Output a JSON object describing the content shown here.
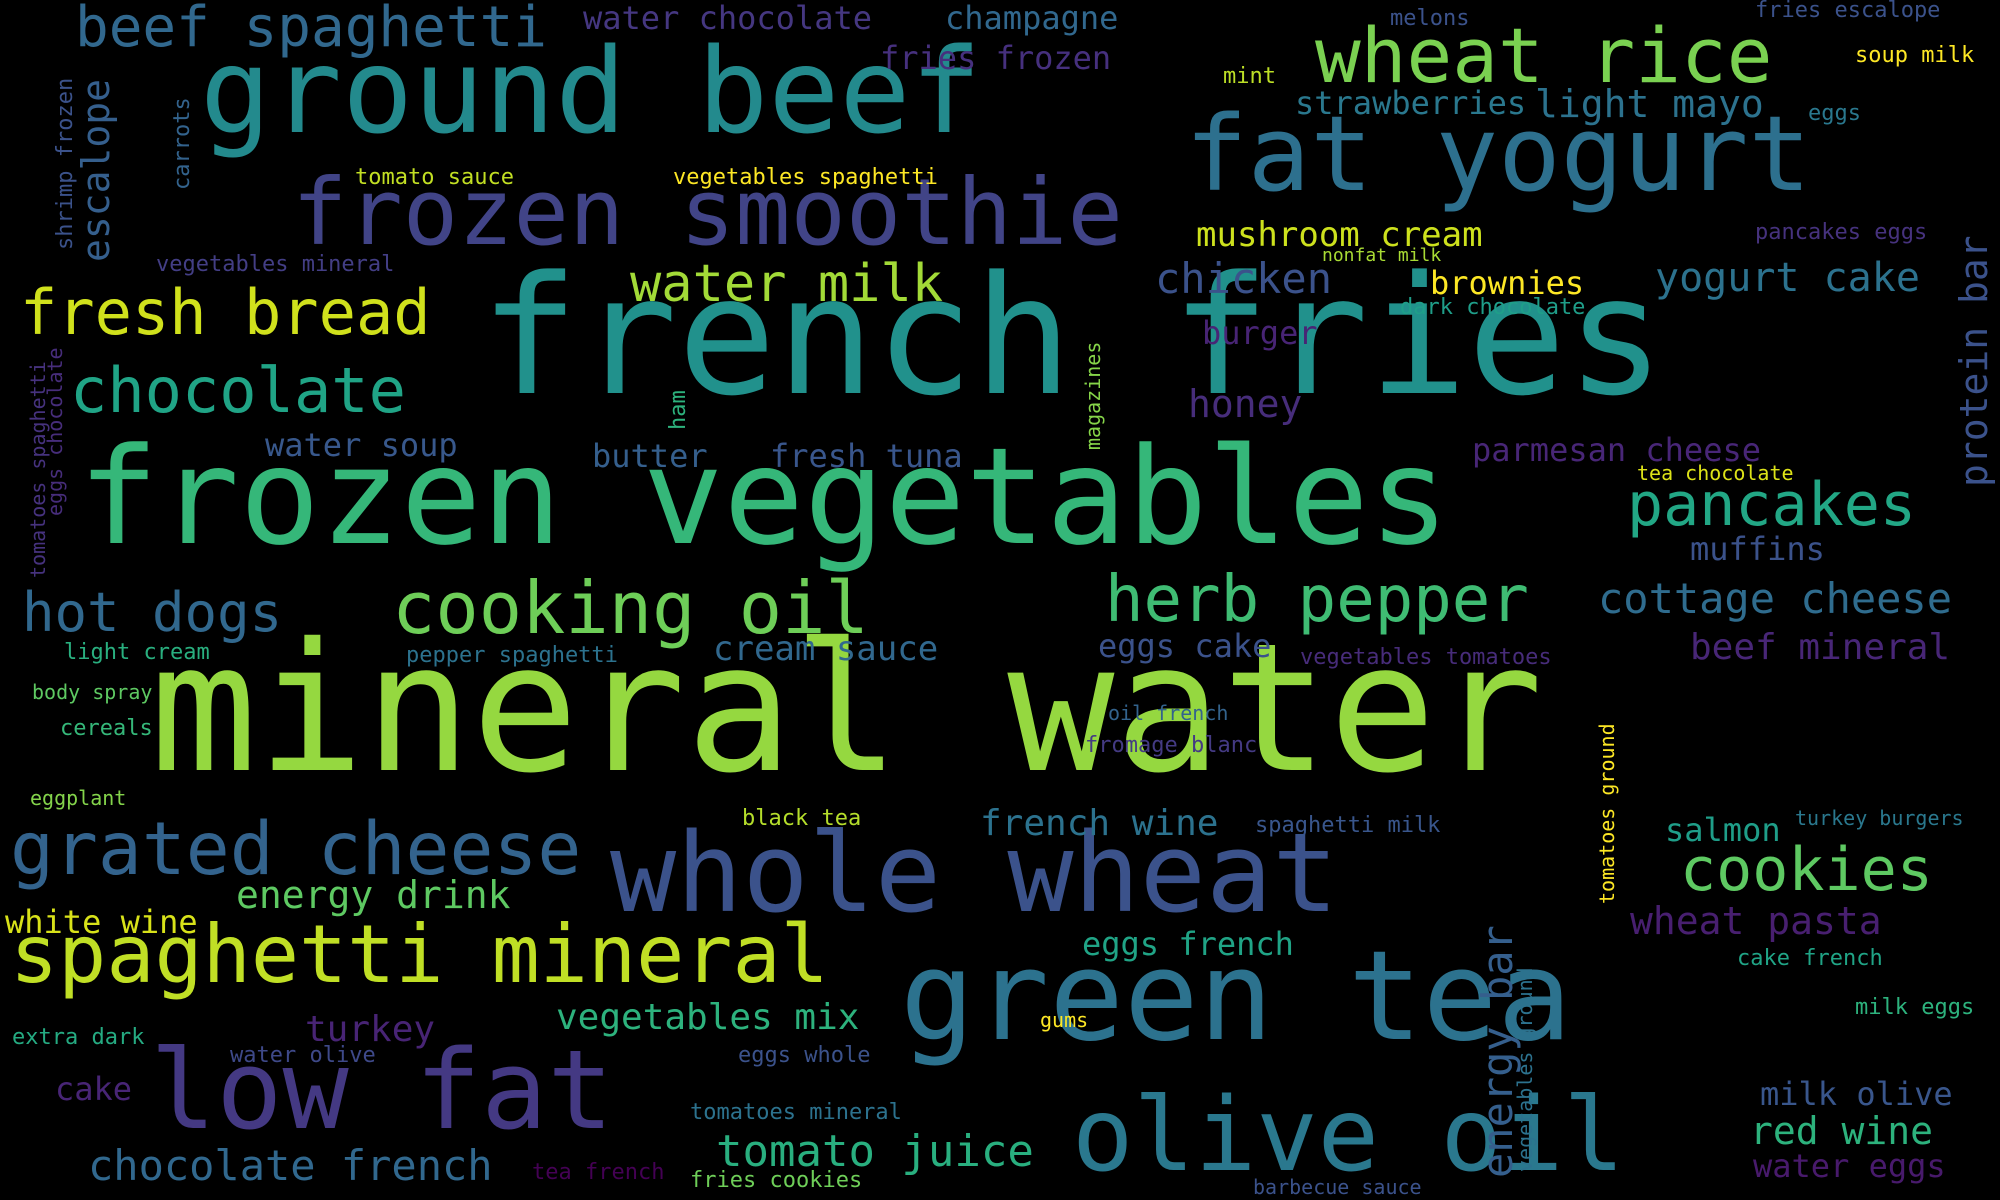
{
  "words": [
    {
      "text": "mineral water",
      "color": "#95d840"
    },
    {
      "text": "french fries",
      "color": "#21918c"
    },
    {
      "text": "frozen vegetables",
      "color": "#35b779"
    },
    {
      "text": "green tea",
      "color": "#2c728e"
    },
    {
      "text": "whole wheat",
      "color": "#3b528b"
    },
    {
      "text": "ground beef",
      "color": "#238a8d"
    },
    {
      "text": "fat yogurt",
      "color": "#2d708e"
    },
    {
      "text": "low fat",
      "color": "#443983"
    },
    {
      "text": "olive oil",
      "color": "#2a788e"
    },
    {
      "text": "frozen smoothie",
      "color": "#414487"
    },
    {
      "text": "spaghetti mineral",
      "color": "#c0df25"
    },
    {
      "text": "grated cheese",
      "color": "#33638d"
    },
    {
      "text": "wheat rice",
      "color": "#7ad151"
    },
    {
      "text": "cooking oil",
      "color": "#6ece58"
    },
    {
      "text": "herb pepper",
      "color": "#3fbc73"
    },
    {
      "text": "beef spaghetti",
      "color": "#31688e"
    },
    {
      "text": "fresh bread",
      "color": "#d0e11c"
    },
    {
      "text": "chocolate",
      "color": "#20a486"
    },
    {
      "text": "hot dogs",
      "color": "#31688e"
    },
    {
      "text": "cookies",
      "color": "#5ec962"
    },
    {
      "text": "pancakes",
      "color": "#22a785"
    },
    {
      "text": "water milk",
      "color": "#a2da37"
    },
    {
      "text": "chocolate french",
      "color": "#31688e"
    },
    {
      "text": "tomato juice",
      "color": "#29af7f"
    },
    {
      "text": "cottage cheese",
      "color": "#2f6c8e"
    },
    {
      "text": "energy bar",
      "color": "#355f8d"
    },
    {
      "text": "red wine",
      "color": "#2db27d"
    },
    {
      "text": "yogurt cake",
      "color": "#2c728e"
    },
    {
      "text": "mushroom cream",
      "color": "#cde11d"
    },
    {
      "text": "chicken",
      "color": "#3b528b"
    },
    {
      "text": "light mayo",
      "color": "#2c728e"
    },
    {
      "text": "strawberries",
      "color": "#2a788e"
    },
    {
      "text": "vegetables mix",
      "color": "#2db27d"
    },
    {
      "text": "energy drink",
      "color": "#5ec962"
    },
    {
      "text": "protein bar",
      "color": "#3b528b"
    },
    {
      "text": "escalope",
      "color": "#355f8d"
    },
    {
      "text": "parmesan cheese",
      "color": "#482677"
    },
    {
      "text": "wheat pasta",
      "color": "#481f70"
    },
    {
      "text": "honey",
      "color": "#472d7b"
    },
    {
      "text": "white wine",
      "color": "#d8e219"
    },
    {
      "text": "champagne",
      "color": "#31688e"
    },
    {
      "text": "water chocolate",
      "color": "#453781"
    },
    {
      "text": "fries frozen",
      "color": "#46307e"
    },
    {
      "text": "french wine",
      "color": "#2c728e"
    },
    {
      "text": "cream sauce",
      "color": "#31688e"
    },
    {
      "text": "eggs french",
      "color": "#20a486"
    },
    {
      "text": "butter",
      "color": "#355f8d"
    },
    {
      "text": "fresh tuna",
      "color": "#39568c"
    },
    {
      "text": "water soup",
      "color": "#38588c"
    },
    {
      "text": "eggs cake",
      "color": "#3b528b"
    },
    {
      "text": "beef mineral",
      "color": "#482677"
    },
    {
      "text": "muffins",
      "color": "#3b528b"
    },
    {
      "text": "milk olive",
      "color": "#39568c"
    },
    {
      "text": "salmon",
      "color": "#1f9e89"
    },
    {
      "text": "turkey",
      "color": "#482475"
    },
    {
      "text": "cake",
      "color": "#482576"
    },
    {
      "text": "brownies",
      "color": "#fde725"
    },
    {
      "text": "burger",
      "color": "#482475"
    },
    {
      "text": "water eggs",
      "color": "#481a6c"
    },
    {
      "text": "water olive",
      "color": "#3e4989"
    },
    {
      "text": "eggs whole",
      "color": "#3b528b"
    },
    {
      "text": "shrimp frozen",
      "color": "#3b528b"
    },
    {
      "text": "carrots",
      "color": "#33638d"
    },
    {
      "text": "tomato sauce",
      "color": "#c2df23"
    },
    {
      "text": "vegetables spaghetti",
      "color": "#fde725"
    },
    {
      "text": "vegetables mineral",
      "color": "#433e85"
    },
    {
      "text": "nonfat milk",
      "color": "#a8db34"
    },
    {
      "text": "dark chocolate",
      "color": "#1f9e89"
    },
    {
      "text": "tea chocolate",
      "color": "#dde318"
    },
    {
      "text": "fries escalope",
      "color": "#3b528b"
    },
    {
      "text": "soup milk",
      "color": "#fde725"
    },
    {
      "text": "melons",
      "color": "#3b528b"
    },
    {
      "text": "mint",
      "color": "#bddf26"
    },
    {
      "text": "eggs",
      "color": "#2a788e"
    },
    {
      "text": "pancakes eggs",
      "color": "#46327e"
    },
    {
      "text": "magazines",
      "color": "#86d549"
    },
    {
      "text": "ham",
      "color": "#2db27d"
    },
    {
      "text": "tomatoes spaghetti",
      "color": "#46327e"
    },
    {
      "text": "eggs chocolate",
      "color": "#472d7b"
    },
    {
      "text": "light cream",
      "color": "#29af7f"
    },
    {
      "text": "pepper spaghetti",
      "color": "#2c728e"
    },
    {
      "text": "vegetables tomatoes",
      "color": "#472c7a"
    },
    {
      "text": "body spray",
      "color": "#5ec962"
    },
    {
      "text": "cereals",
      "color": "#35b779"
    },
    {
      "text": "oil french",
      "color": "#33638d"
    },
    {
      "text": "fromage blanc",
      "color": "#443a83"
    },
    {
      "text": "eggplant",
      "color": "#84d44b"
    },
    {
      "text": "black tea",
      "color": "#b5de2b"
    },
    {
      "text": "spaghetti milk",
      "color": "#39568c"
    },
    {
      "text": "tomatoes ground",
      "color": "#fde725"
    },
    {
      "text": "turkey burgers",
      "color": "#2a788e"
    },
    {
      "text": "cake french",
      "color": "#20a486"
    },
    {
      "text": "milk eggs",
      "color": "#2db27d"
    },
    {
      "text": "gums",
      "color": "#fde725"
    },
    {
      "text": "vegetables ground",
      "color": "#2c728e"
    },
    {
      "text": "extra dark",
      "color": "#25ab82"
    },
    {
      "text": "tomatoes mineral",
      "color": "#2c728e"
    },
    {
      "text": "tea french",
      "color": "#440154"
    },
    {
      "text": "fries cookies",
      "color": "#6ece58"
    },
    {
      "text": "barbecue sauce",
      "color": "#3b528b"
    }
  ]
}
